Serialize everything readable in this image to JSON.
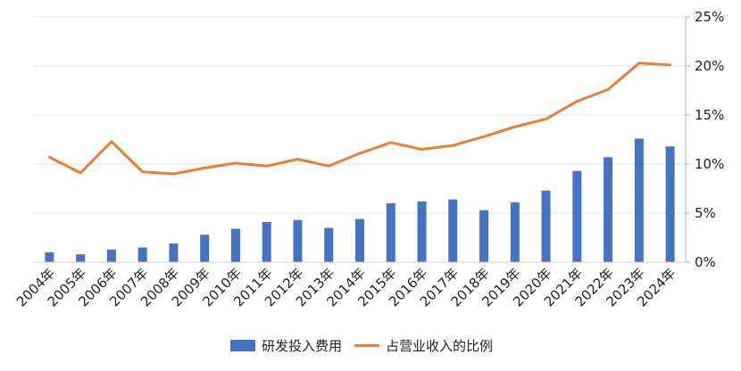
{
  "chart_data": {
    "type": "bar",
    "categories": [
      "2004年",
      "2005年",
      "2006年",
      "2007年",
      "2008年",
      "2009年",
      "2010年",
      "2011年",
      "2012年",
      "2013年",
      "2014年",
      "2015年",
      "2016年",
      "2017年",
      "2018年",
      "2019年",
      "2020年",
      "2021年",
      "2022年",
      "2023年",
      "2024年"
    ],
    "series": [
      {
        "name": "研发投入费用",
        "type": "bar",
        "color": "#4472C4",
        "values": [
          1.0,
          0.8,
          1.3,
          1.5,
          1.9,
          2.8,
          3.4,
          4.1,
          4.3,
          3.5,
          4.4,
          6.0,
          6.2,
          6.4,
          5.3,
          6.1,
          7.3,
          9.3,
          10.7,
          12.6,
          11.8
        ]
      },
      {
        "name": "占营业收入的比例",
        "type": "line",
        "color": "#ED7D31",
        "values": [
          10.7,
          9.1,
          12.3,
          9.2,
          9.0,
          9.6,
          10.1,
          9.8,
          10.5,
          9.8,
          11.1,
          12.2,
          11.5,
          11.9,
          12.8,
          13.8,
          14.6,
          16.4,
          17.6,
          20.3,
          20.1
        ]
      }
    ],
    "yticks": [
      "0%",
      "5%",
      "10%",
      "15%",
      "20%",
      "25%"
    ],
    "ylim": [
      0,
      25
    ],
    "y_axis_side": "right",
    "grid": true,
    "legend_position": "bottom"
  }
}
